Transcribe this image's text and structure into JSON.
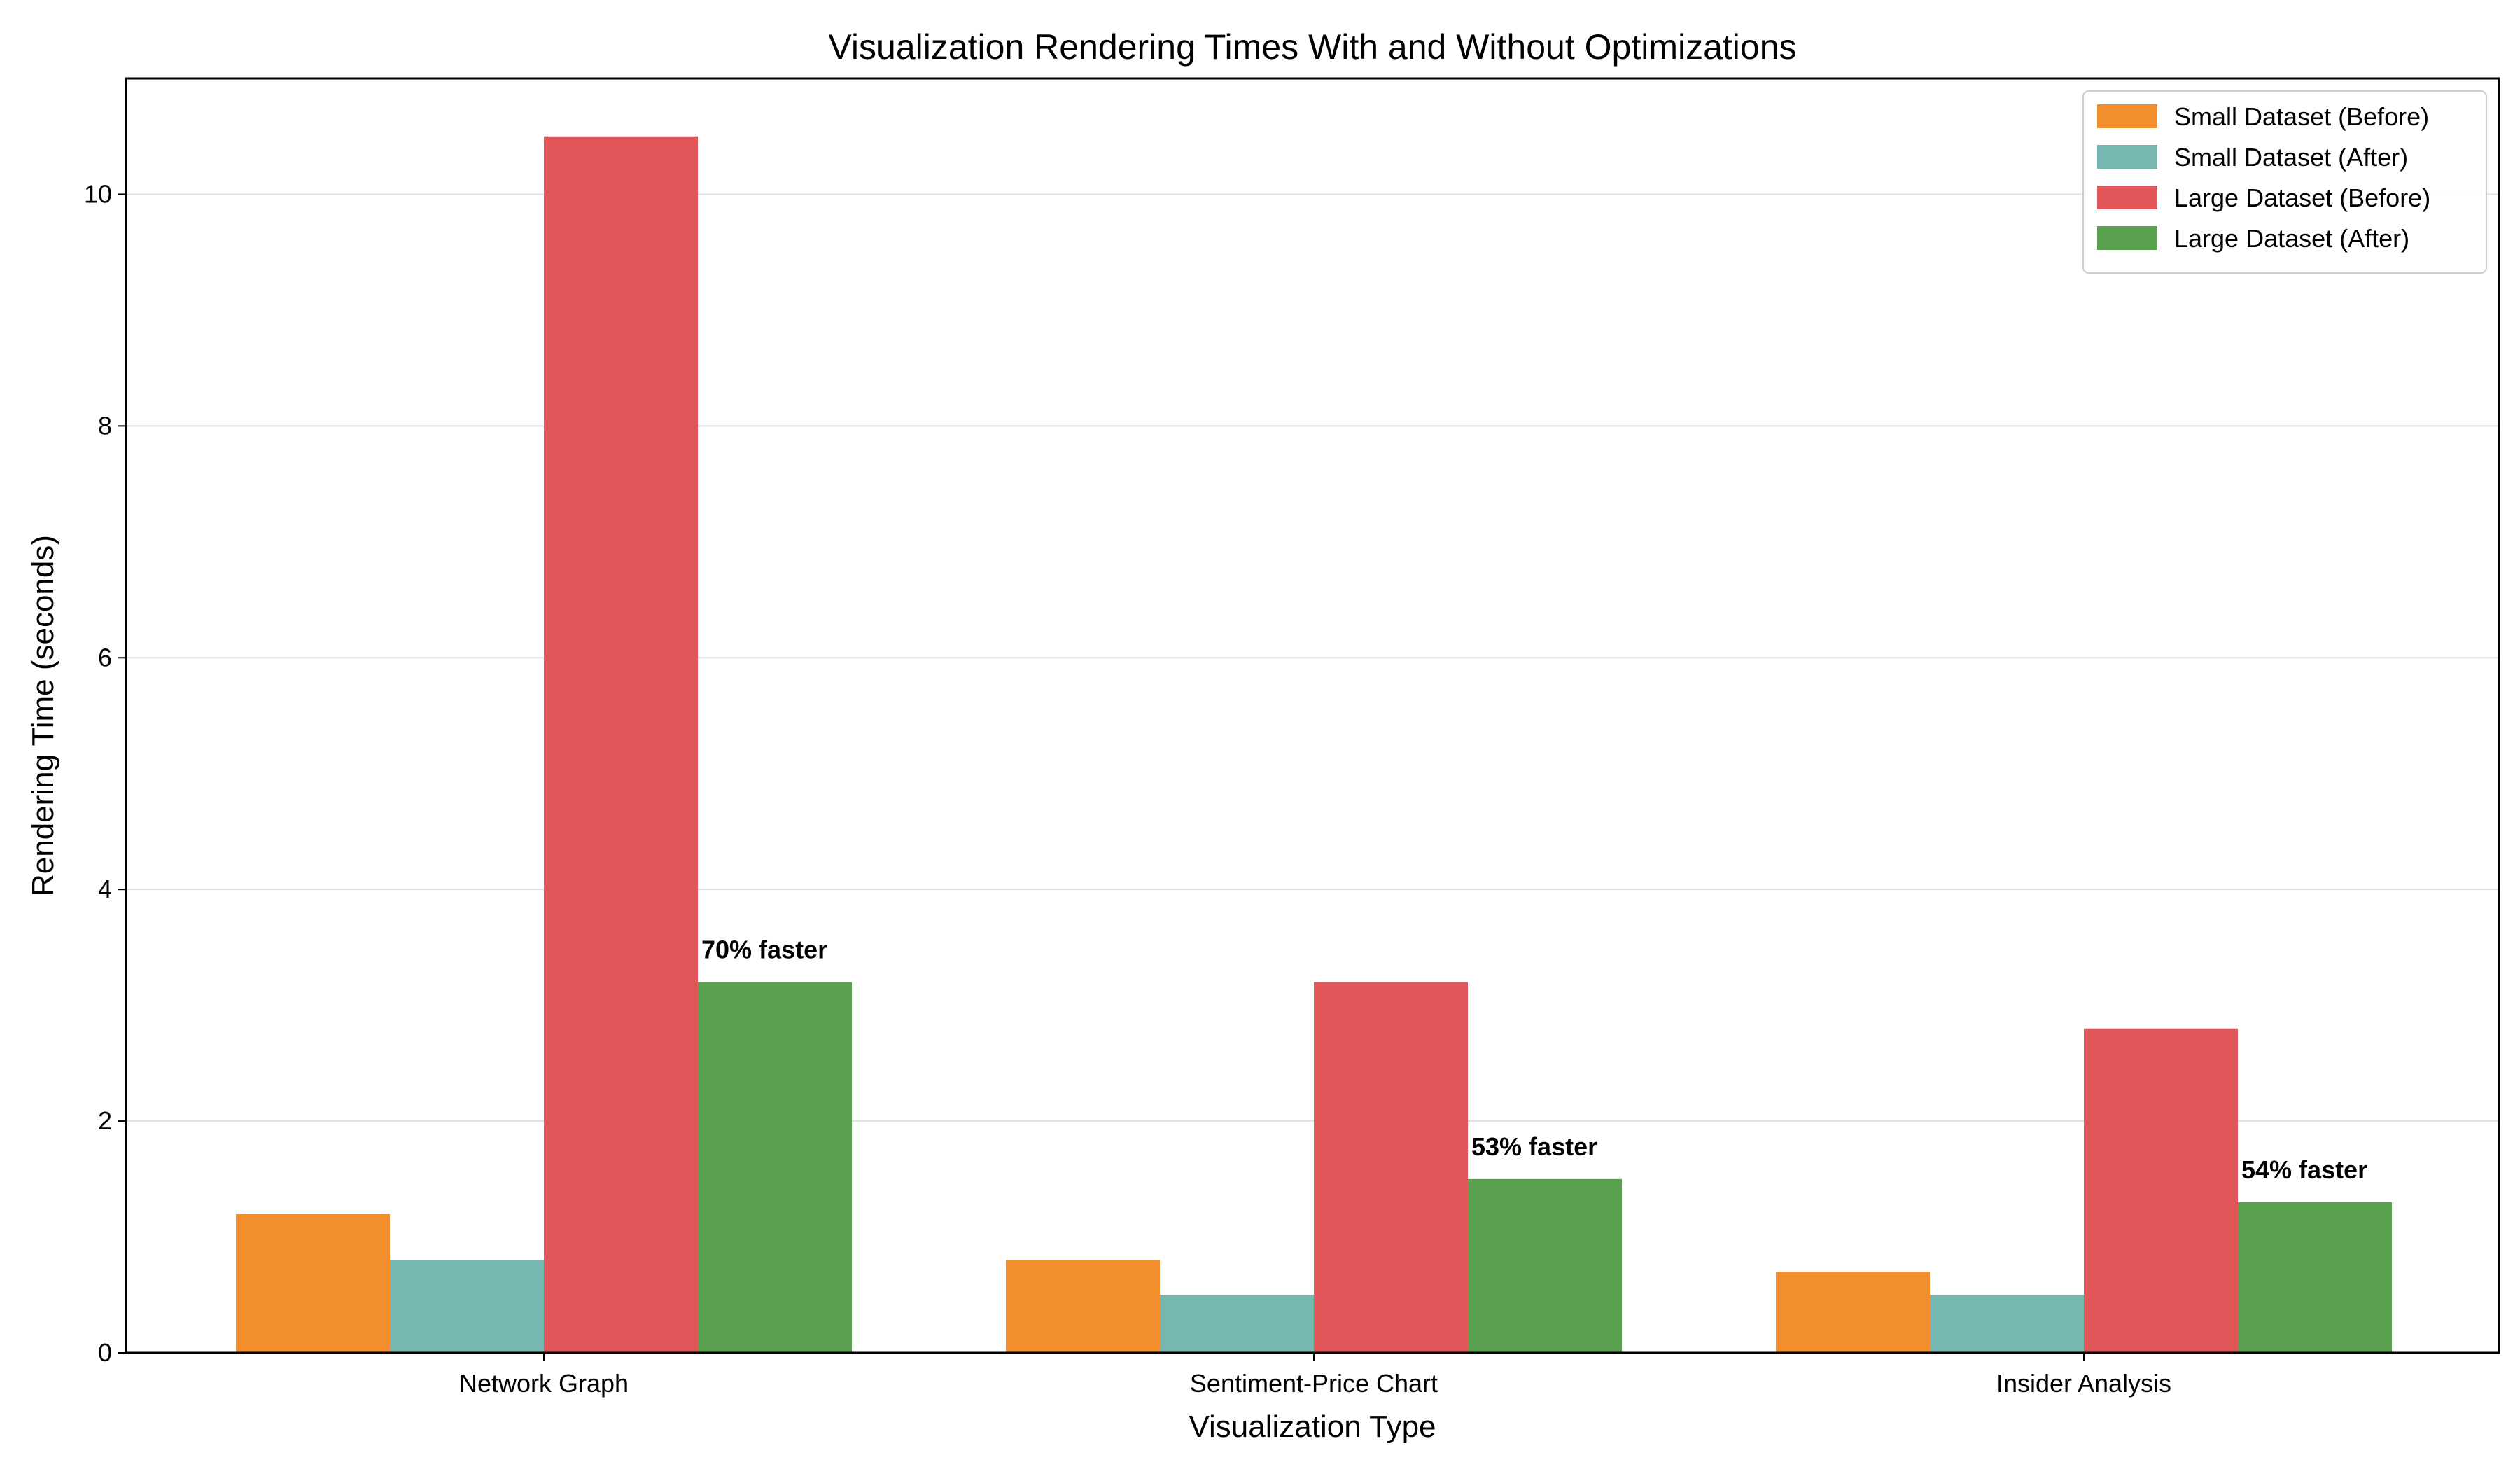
{
  "chart_data": {
    "type": "bar",
    "title": "Visualization Rendering Times With and Without Optimizations",
    "xlabel": "Visualization Type",
    "ylabel": "Rendering Time (seconds)",
    "categories": [
      "Network Graph",
      "Sentiment-Price Chart",
      "Insider Analysis"
    ],
    "series": [
      {
        "name": "Small Dataset (Before)",
        "values": [
          1.2,
          0.8,
          0.7
        ],
        "color": "#f28e2b"
      },
      {
        "name": "Small Dataset (After)",
        "values": [
          0.8,
          0.5,
          0.5
        ],
        "color": "#76b7b2"
      },
      {
        "name": "Large Dataset (Before)",
        "values": [
          10.5,
          3.2,
          2.8
        ],
        "color": "#e15759"
      },
      {
        "name": "Large Dataset (After)",
        "values": [
          3.2,
          1.5,
          1.3
        ],
        "color": "#59a14f"
      }
    ],
    "annotations": [
      {
        "category": "Network Graph",
        "series": "Large Dataset (After)",
        "text": "70% faster"
      },
      {
        "category": "Sentiment-Price Chart",
        "series": "Large Dataset (After)",
        "text": "53% faster"
      },
      {
        "category": "Insider Analysis",
        "series": "Large Dataset (After)",
        "text": "54% faster"
      }
    ],
    "ylim": [
      0,
      11
    ],
    "yticks": [
      0,
      2,
      4,
      6,
      8,
      10
    ],
    "grid": "y",
    "legend_position": "top-right"
  }
}
